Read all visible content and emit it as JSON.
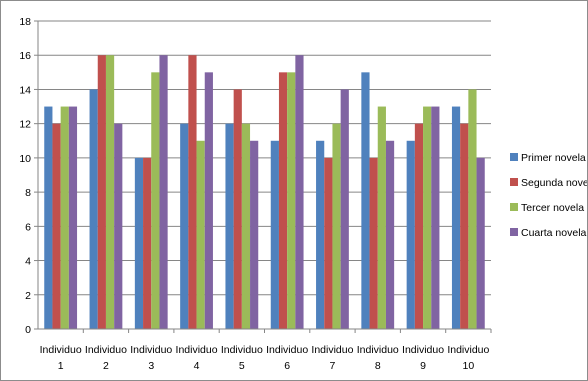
{
  "chart_data": {
    "type": "bar",
    "title": "",
    "xlabel": "",
    "ylabel": "",
    "ylim": [
      0,
      18
    ],
    "yticks": [
      0,
      2,
      4,
      6,
      8,
      10,
      12,
      14,
      16,
      18
    ],
    "grid": true,
    "legend_position": "right",
    "categories": [
      [
        "Individuo",
        "1"
      ],
      [
        "Individuo",
        "2"
      ],
      [
        "Individuo",
        "3"
      ],
      [
        "Individuo",
        "4"
      ],
      [
        "Individuo",
        "5"
      ],
      [
        "Individuo",
        "6"
      ],
      [
        "Individuo",
        "7"
      ],
      [
        "Individuo",
        "8"
      ],
      [
        "Individuo",
        "9"
      ],
      [
        "Individuo",
        "10"
      ]
    ],
    "series": [
      {
        "name": "Primer novela",
        "color": "#4f81bd",
        "values": [
          13,
          14,
          10,
          12,
          12,
          11,
          11,
          15,
          11,
          13
        ]
      },
      {
        "name": "Segunda novela",
        "color": "#c0504d",
        "values": [
          12,
          16,
          10,
          16,
          14,
          15,
          10,
          10,
          12,
          12
        ]
      },
      {
        "name": "Tercer novela",
        "color": "#9bbb59",
        "values": [
          13,
          16,
          15,
          11,
          12,
          15,
          12,
          13,
          13,
          14
        ]
      },
      {
        "name": "Cuarta novela",
        "color": "#8064a2",
        "values": [
          13,
          12,
          16,
          15,
          11,
          16,
          14,
          11,
          13,
          10
        ]
      }
    ]
  }
}
